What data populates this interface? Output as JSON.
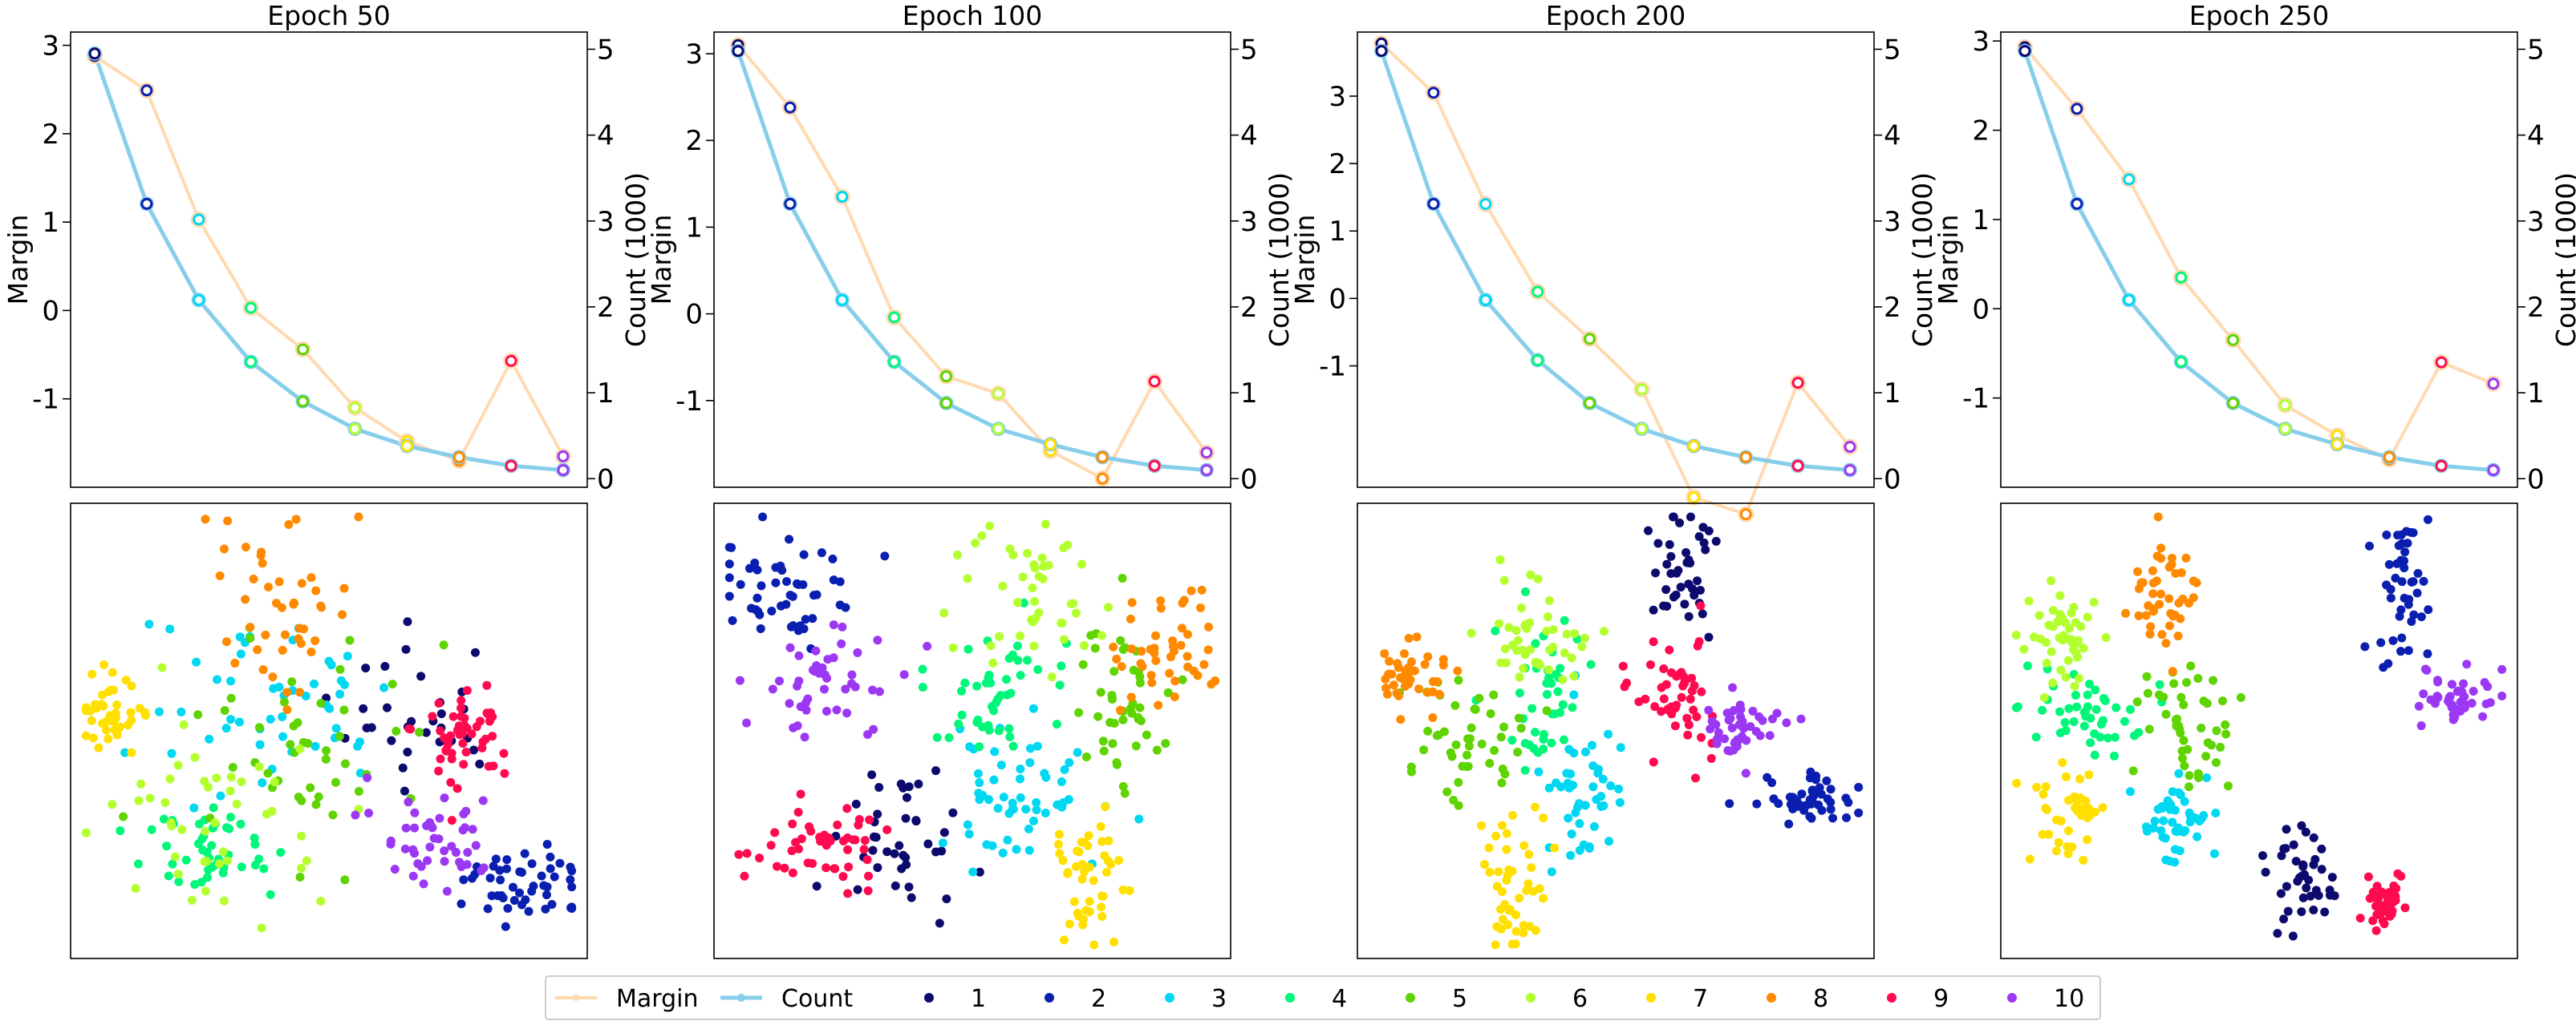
{
  "colors": {
    "margin_line": "#ffdab0",
    "count_line": "#87ceeb",
    "classes": [
      "#0d0a6e",
      "#0a1fb0",
      "#00d8f2",
      "#00f77a",
      "#5fd400",
      "#b4ff2e",
      "#ffe000",
      "#ff8a00",
      "#ff0a4e",
      "#9b38f4"
    ]
  },
  "legend": {
    "margin_label": "Margin",
    "count_label": "Count",
    "class_labels": [
      "1",
      "2",
      "3",
      "4",
      "5",
      "6",
      "7",
      "8",
      "9",
      "10"
    ]
  },
  "chart_data": [
    {
      "type": "line",
      "title": "Epoch 50",
      "xlabel": "",
      "ylabel": "Margin",
      "y2label": "Count (1000)",
      "ylim": [
        -2.0,
        3.15
      ],
      "y2lim": [
        -0.1,
        5.2
      ],
      "yticks": [
        "3",
        "2",
        "1",
        "0",
        "-1"
      ],
      "y2ticks": [
        "5",
        "4",
        "3",
        "2",
        "1",
        "0"
      ],
      "grid": false,
      "x": [
        1,
        2,
        3,
        4,
        5,
        6,
        7,
        8,
        9,
        10
      ],
      "series": [
        {
          "name": "Margin",
          "axis": "left",
          "values": [
            2.88,
            2.49,
            1.03,
            0.03,
            -0.44,
            -1.1,
            -1.48,
            -1.7,
            -0.57,
            -1.65
          ]
        },
        {
          "name": "Count",
          "axis": "right",
          "values": [
            4.95,
            3.2,
            2.08,
            1.36,
            0.9,
            0.58,
            0.38,
            0.25,
            0.15,
            0.1
          ]
        }
      ]
    },
    {
      "type": "scatter",
      "title": "",
      "xlabel": "",
      "ylabel": "",
      "axes_visible": false,
      "clusters": [
        {
          "class": "1",
          "cx": 0.68,
          "cy": 0.47,
          "sx": 0.09,
          "sy": 0.08,
          "n": 30
        },
        {
          "class": "2",
          "cx": 0.88,
          "cy": 0.83,
          "sx": 0.06,
          "sy": 0.04,
          "n": 50
        },
        {
          "class": "3",
          "cx": 0.38,
          "cy": 0.43,
          "sx": 0.12,
          "sy": 0.11,
          "n": 50
        },
        {
          "class": "4",
          "cx": 0.27,
          "cy": 0.77,
          "sx": 0.08,
          "sy": 0.06,
          "n": 45
        },
        {
          "class": "5",
          "cx": 0.45,
          "cy": 0.55,
          "sx": 0.1,
          "sy": 0.12,
          "n": 45
        },
        {
          "class": "6",
          "cx": 0.28,
          "cy": 0.7,
          "sx": 0.1,
          "sy": 0.1,
          "n": 45
        },
        {
          "class": "7",
          "cx": 0.08,
          "cy": 0.46,
          "sx": 0.04,
          "sy": 0.04,
          "n": 40
        },
        {
          "class": "8",
          "cx": 0.4,
          "cy": 0.22,
          "sx": 0.07,
          "sy": 0.1,
          "n": 45
        },
        {
          "class": "9",
          "cx": 0.76,
          "cy": 0.5,
          "sx": 0.05,
          "sy": 0.06,
          "n": 50
        },
        {
          "class": "10",
          "cx": 0.71,
          "cy": 0.73,
          "sx": 0.06,
          "sy": 0.05,
          "n": 45
        }
      ]
    },
    {
      "type": "line",
      "title": "Epoch 100",
      "xlabel": "",
      "ylabel": "Margin",
      "y2label": "Count (1000)",
      "ylim": [
        -2.0,
        3.25
      ],
      "y2lim": [
        -0.1,
        5.2
      ],
      "yticks": [
        "3",
        "2",
        "1",
        "0",
        "-1"
      ],
      "y2ticks": [
        "5",
        "4",
        "3",
        "2",
        "1",
        "0"
      ],
      "grid": false,
      "x": [
        1,
        2,
        3,
        4,
        5,
        6,
        7,
        8,
        9,
        10
      ],
      "series": [
        {
          "name": "Margin",
          "axis": "left",
          "values": [
            3.1,
            2.38,
            1.35,
            -0.04,
            -0.72,
            -0.92,
            -1.58,
            -1.9,
            -0.78,
            -1.6
          ]
        },
        {
          "name": "Count",
          "axis": "right",
          "values": [
            4.98,
            3.2,
            2.08,
            1.36,
            0.88,
            0.58,
            0.4,
            0.25,
            0.15,
            0.1
          ]
        }
      ]
    },
    {
      "type": "scatter",
      "title": "",
      "xlabel": "",
      "ylabel": "",
      "axes_visible": false,
      "clusters": [
        {
          "class": "1",
          "cx": 0.37,
          "cy": 0.75,
          "sx": 0.06,
          "sy": 0.09,
          "n": 40
        },
        {
          "class": "2",
          "cx": 0.14,
          "cy": 0.2,
          "sx": 0.08,
          "sy": 0.05,
          "n": 50
        },
        {
          "class": "3",
          "cx": 0.57,
          "cy": 0.63,
          "sx": 0.08,
          "sy": 0.08,
          "n": 55
        },
        {
          "class": "4",
          "cx": 0.55,
          "cy": 0.4,
          "sx": 0.07,
          "sy": 0.1,
          "n": 45
        },
        {
          "class": "5",
          "cx": 0.8,
          "cy": 0.45,
          "sx": 0.05,
          "sy": 0.1,
          "n": 45
        },
        {
          "class": "6",
          "cx": 0.62,
          "cy": 0.22,
          "sx": 0.06,
          "sy": 0.09,
          "n": 45
        },
        {
          "class": "7",
          "cx": 0.71,
          "cy": 0.82,
          "sx": 0.04,
          "sy": 0.08,
          "n": 45
        },
        {
          "class": "8",
          "cx": 0.87,
          "cy": 0.32,
          "sx": 0.05,
          "sy": 0.07,
          "n": 45
        },
        {
          "class": "9",
          "cx": 0.2,
          "cy": 0.75,
          "sx": 0.07,
          "sy": 0.05,
          "n": 50
        },
        {
          "class": "10",
          "cx": 0.23,
          "cy": 0.38,
          "sx": 0.08,
          "sy": 0.07,
          "n": 45
        }
      ]
    },
    {
      "type": "line",
      "title": "Epoch 200",
      "xlabel": "",
      "ylabel": "Margin",
      "y2label": "Count (1000)",
      "ylim": [
        -2.8,
        3.95
      ],
      "y2lim": [
        -0.1,
        5.2
      ],
      "yticks": [
        "3",
        "2",
        "1",
        "0",
        "-1"
      ],
      "y2ticks": [
        "5",
        "4",
        "3",
        "2",
        "1",
        "0"
      ],
      "grid": false,
      "x": [
        1,
        2,
        3,
        4,
        5,
        6,
        7,
        8,
        9,
        10
      ],
      "series": [
        {
          "name": "Margin",
          "axis": "left",
          "values": [
            3.78,
            3.05,
            1.4,
            0.1,
            -0.6,
            -1.35,
            -2.95,
            -3.2,
            -1.25,
            -2.2
          ]
        },
        {
          "name": "Count",
          "axis": "right",
          "values": [
            4.98,
            3.2,
            2.08,
            1.38,
            0.88,
            0.58,
            0.38,
            0.25,
            0.15,
            0.1
          ]
        }
      ]
    },
    {
      "type": "scatter",
      "title": "",
      "xlabel": "",
      "ylabel": "",
      "axes_visible": false,
      "clusters": [
        {
          "class": "1",
          "cx": 0.63,
          "cy": 0.15,
          "sx": 0.03,
          "sy": 0.07,
          "n": 40
        },
        {
          "class": "2",
          "cx": 0.87,
          "cy": 0.65,
          "sx": 0.05,
          "sy": 0.025,
          "n": 50
        },
        {
          "class": "3",
          "cx": 0.44,
          "cy": 0.63,
          "sx": 0.04,
          "sy": 0.08,
          "n": 45
        },
        {
          "class": "4",
          "cx": 0.38,
          "cy": 0.42,
          "sx": 0.04,
          "sy": 0.08,
          "n": 40
        },
        {
          "class": "5",
          "cx": 0.21,
          "cy": 0.52,
          "sx": 0.06,
          "sy": 0.06,
          "n": 45
        },
        {
          "class": "6",
          "cx": 0.34,
          "cy": 0.3,
          "sx": 0.05,
          "sy": 0.06,
          "n": 45
        },
        {
          "class": "7",
          "cx": 0.3,
          "cy": 0.83,
          "sx": 0.03,
          "sy": 0.1,
          "n": 45
        },
        {
          "class": "8",
          "cx": 0.1,
          "cy": 0.38,
          "sx": 0.04,
          "sy": 0.035,
          "n": 40
        },
        {
          "class": "9",
          "cx": 0.62,
          "cy": 0.4,
          "sx": 0.04,
          "sy": 0.07,
          "n": 50
        },
        {
          "class": "10",
          "cx": 0.74,
          "cy": 0.49,
          "sx": 0.04,
          "sy": 0.04,
          "n": 45
        }
      ]
    },
    {
      "type": "line",
      "title": "Epoch 250",
      "xlabel": "",
      "ylabel": "Margin",
      "y2label": "Count (1000)",
      "ylim": [
        -2.0,
        3.1
      ],
      "y2lim": [
        -0.1,
        5.2
      ],
      "yticks": [
        "3",
        "2",
        "1",
        "0",
        "-1"
      ],
      "y2ticks": [
        "5",
        "4",
        "3",
        "2",
        "1",
        "0"
      ],
      "grid": false,
      "x": [
        1,
        2,
        3,
        4,
        5,
        6,
        7,
        8,
        9,
        10
      ],
      "series": [
        {
          "name": "Margin",
          "axis": "left",
          "values": [
            2.93,
            2.24,
            1.45,
            0.35,
            -0.35,
            -1.08,
            -1.42,
            -1.69,
            -0.6,
            -0.84
          ]
        },
        {
          "name": "Count",
          "axis": "right",
          "values": [
            4.98,
            3.2,
            2.08,
            1.36,
            0.88,
            0.58,
            0.4,
            0.25,
            0.15,
            0.1
          ]
        }
      ]
    },
    {
      "type": "scatter",
      "title": "",
      "xlabel": "",
      "ylabel": "",
      "axes_visible": false,
      "clusters": [
        {
          "class": "1",
          "cx": 0.58,
          "cy": 0.82,
          "sx": 0.03,
          "sy": 0.05,
          "n": 40
        },
        {
          "class": "2",
          "cx": 0.78,
          "cy": 0.2,
          "sx": 0.025,
          "sy": 0.09,
          "n": 45
        },
        {
          "class": "3",
          "cx": 0.34,
          "cy": 0.71,
          "sx": 0.035,
          "sy": 0.05,
          "n": 45
        },
        {
          "class": "4",
          "cx": 0.14,
          "cy": 0.45,
          "sx": 0.06,
          "sy": 0.05,
          "n": 45
        },
        {
          "class": "5",
          "cx": 0.36,
          "cy": 0.46,
          "sx": 0.04,
          "sy": 0.08,
          "n": 45
        },
        {
          "class": "6",
          "cx": 0.12,
          "cy": 0.3,
          "sx": 0.04,
          "sy": 0.06,
          "n": 45
        },
        {
          "class": "7",
          "cx": 0.13,
          "cy": 0.69,
          "sx": 0.03,
          "sy": 0.05,
          "n": 40
        },
        {
          "class": "8",
          "cx": 0.32,
          "cy": 0.2,
          "sx": 0.03,
          "sy": 0.08,
          "n": 45
        },
        {
          "class": "9",
          "cx": 0.74,
          "cy": 0.88,
          "sx": 0.025,
          "sy": 0.035,
          "n": 40
        },
        {
          "class": "10",
          "cx": 0.89,
          "cy": 0.43,
          "sx": 0.04,
          "sy": 0.03,
          "n": 45
        }
      ]
    }
  ]
}
